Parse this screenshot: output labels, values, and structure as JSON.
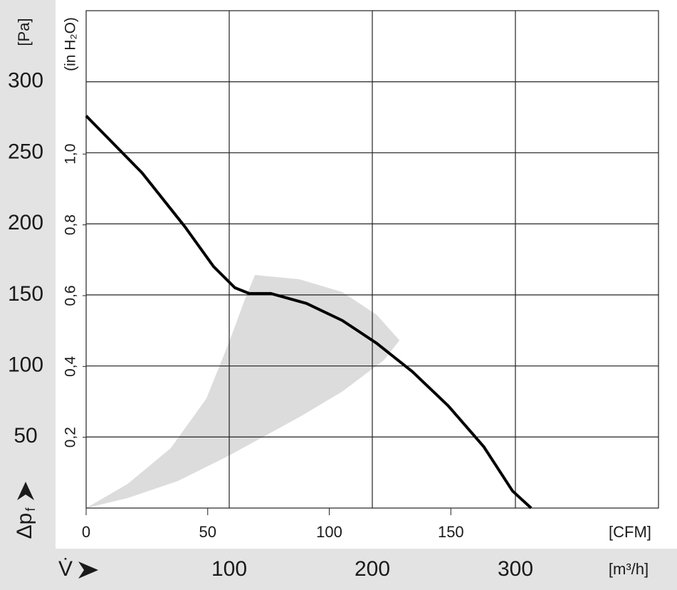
{
  "chart_data": {
    "type": "line",
    "x": [
      0,
      39,
      69,
      89,
      104,
      114,
      129,
      154,
      179,
      203,
      228,
      253,
      278,
      298,
      311
    ],
    "values": [
      276,
      236,
      198,
      170,
      155,
      151,
      151,
      144,
      132,
      116,
      96,
      72,
      43,
      12,
      0
    ],
    "color": "#000000",
    "shaded_region": {
      "x": [
        0,
        29,
        59,
        84,
        100,
        111,
        118,
        149,
        179,
        203,
        219,
        208,
        179,
        149,
        100,
        64,
        29
      ],
      "y": [
        0,
        17,
        42,
        77,
        117,
        147,
        164,
        161,
        152,
        136,
        118,
        104,
        82,
        64,
        37,
        19,
        7
      ],
      "color": "#dcdcdc"
    },
    "xlim": [
      0,
      400
    ],
    "xticks": [
      100,
      200,
      300
    ],
    "x_unit": "[m³/h]",
    "x_label": "V̇",
    "x2lim": [
      0,
      235.4
    ],
    "x2ticks": [
      0,
      50,
      100,
      150
    ],
    "x2_unit": "[CFM]",
    "ylim": [
      0,
      350
    ],
    "yticks": [
      50,
      100,
      150,
      200,
      250,
      300
    ],
    "y_unit": "[Pa]",
    "y_label": "Δp",
    "y_label_sub": "f",
    "y2lim": [
      0,
      1.405
    ],
    "y2ticks": [
      {
        "value": 0.2,
        "label": "0,2"
      },
      {
        "value": 0.4,
        "label": "0,4"
      },
      {
        "value": 0.6,
        "label": "0,6"
      },
      {
        "value": 0.8,
        "label": "0,8"
      },
      {
        "value": 1.0,
        "label": "1,0"
      }
    ],
    "y2_unit": "(in H₂O)",
    "grid": true
  }
}
